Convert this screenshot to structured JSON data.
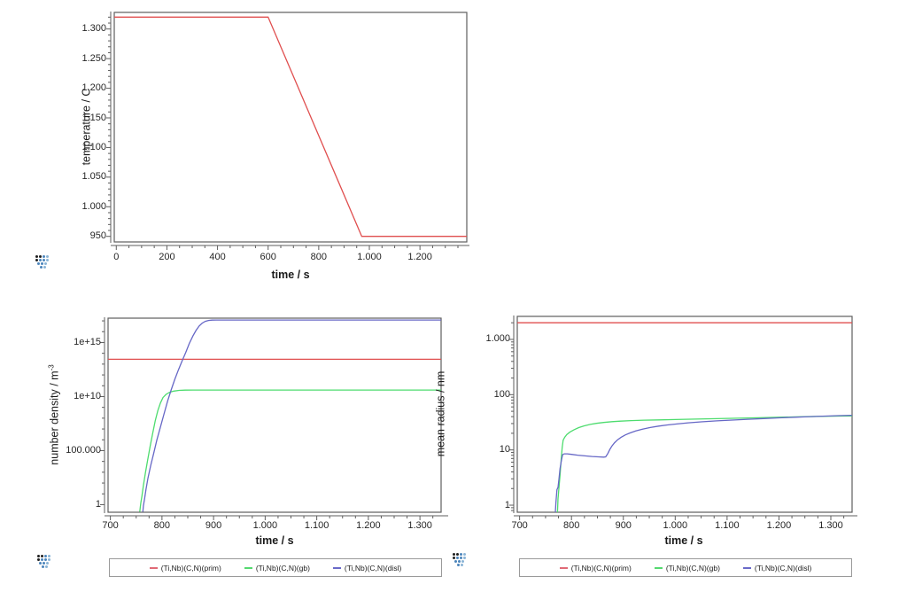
{
  "window": {
    "background": "#ffffff"
  },
  "logo_icon": {
    "name": "matcalc-logo-icon",
    "colors": {
      "dark": "#1f1f1f",
      "blue": "#4b84bb",
      "lightblue": "#8ab4d6"
    }
  },
  "chart_data": [
    {
      "id": "temperature-profile",
      "type": "line",
      "title": "",
      "xlabel": "time / s",
      "ylabel": "temperature / C",
      "ylabel_sup": "",
      "x_axis": {
        "scale": "linear",
        "lim": [
          -8,
          1385
        ],
        "major_step": 200,
        "minor_step": 50,
        "ticks": [
          {
            "v": 0,
            "l": "0"
          },
          {
            "v": 200,
            "l": "200"
          },
          {
            "v": 400,
            "l": "400"
          },
          {
            "v": 600,
            "l": "600"
          },
          {
            "v": 800,
            "l": "800"
          },
          {
            "v": 1000,
            "l": "1.000"
          },
          {
            "v": 1200,
            "l": "1.200"
          }
        ]
      },
      "y_axis": {
        "scale": "linear",
        "lim": [
          940.6,
          1328
        ],
        "major_step": 50,
        "minor_step": 10,
        "ticks": [
          {
            "v": 950,
            "l": "950"
          },
          {
            "v": 1000,
            "l": "1.000"
          },
          {
            "v": 1050,
            "l": "1.050"
          },
          {
            "v": 1100,
            "l": "1.100"
          },
          {
            "v": 1150,
            "l": "1.150"
          },
          {
            "v": 1200,
            "l": "1.200"
          },
          {
            "v": 1250,
            "l": "1.250"
          },
          {
            "v": 1300,
            "l": "1.300"
          }
        ]
      },
      "series": [
        {
          "name": "temperature",
          "color": "#e04f4f",
          "points": [
            [
              -8,
              1320
            ],
            [
              600,
              1320
            ],
            [
              970,
              950
            ],
            [
              1385,
              950
            ]
          ]
        }
      ],
      "legend_entries": []
    },
    {
      "id": "number-density",
      "type": "line",
      "title": "",
      "xlabel": "time / s",
      "ylabel": "number density / m",
      "ylabel_sup": "-3",
      "x_axis": {
        "scale": "linear",
        "lim": [
          695.5,
          1341
        ],
        "major_step": 100,
        "minor_step": 25,
        "ticks": [
          {
            "v": 700,
            "l": "700"
          },
          {
            "v": 800,
            "l": "800"
          },
          {
            "v": 900,
            "l": "900"
          },
          {
            "v": 1000,
            "l": "1.000"
          },
          {
            "v": 1100,
            "l": "1.100"
          },
          {
            "v": 1200,
            "l": "1.200"
          },
          {
            "v": 1300,
            "l": "1.300"
          }
        ]
      },
      "y_axis": {
        "scale": "log",
        "lim": [
          0.1995,
          1.78e+17
        ],
        "minor": "decade",
        "ticks": [
          {
            "v": 1000000000000000.0,
            "l": "1e+15"
          },
          {
            "v": 10000000000.0,
            "l": "1e+10"
          },
          {
            "v": 100000.0,
            "l": "100.000"
          },
          {
            "v": 1,
            "l": "1"
          }
        ]
      },
      "series": [
        {
          "name": "(Ti,Nb)(C,N)(prim)",
          "color": "#e04f4f",
          "points": [
            [
              695.5,
              28000000000000.0
            ],
            [
              1341,
              28000000000000.0
            ]
          ]
        },
        {
          "name": "(Ti,Nb)(C,N)(gb)",
          "color": "#4ddc6e",
          "points": [
            [
              757,
              0.22
            ],
            [
              758,
              0.6
            ],
            [
              759,
              1.5
            ],
            [
              761,
              6
            ],
            [
              764,
              60
            ],
            [
              768,
              900
            ],
            [
              772,
              12000.0
            ],
            [
              777,
              250000.0
            ],
            [
              782,
              4000000.0
            ],
            [
              787,
              60000000.0
            ],
            [
              792,
              500000000.0
            ],
            [
              797,
              2500000000.0
            ],
            [
              802,
              8000000000.0
            ],
            [
              808,
              16000000000.0
            ],
            [
              815,
              25000000000.0
            ],
            [
              823,
              32000000000.0
            ],
            [
              833,
              37000000000.0
            ],
            [
              845,
              39500000000.0
            ],
            [
              860,
              40000000000.0
            ],
            [
              1341,
              40000000000.0
            ]
          ]
        },
        {
          "name": "(Ti,Nb)(C,N)(disl)",
          "color": "#6667c6",
          "points": [
            [
              763,
              0.22
            ],
            [
              764,
              0.8
            ],
            [
              766,
              3
            ],
            [
              769,
              25
            ],
            [
              773,
              300
            ],
            [
              778,
              4000.0
            ],
            [
              784,
              60000.0
            ],
            [
              790,
              900000.0
            ],
            [
              797,
              15000000.0
            ],
            [
              804,
              250000000.0
            ],
            [
              811,
              4000000000.0
            ],
            [
              818,
              45000000000.0
            ],
            [
              825,
              400000000000.0
            ],
            [
              832,
              3000000000000.0
            ],
            [
              839,
              20000000000000.0
            ],
            [
              846,
              120000000000000.0
            ],
            [
              853,
              800000000000000.0
            ],
            [
              860,
              4000000000000000.0
            ],
            [
              866,
              1.3e+16
            ],
            [
              872,
              3.3e+16
            ],
            [
              878,
              6.2e+16
            ],
            [
              884,
              9e+16
            ],
            [
              890,
              1.08e+17
            ],
            [
              897,
              1.17e+17
            ],
            [
              905,
              1.2e+17
            ],
            [
              1341,
              1.2e+17
            ]
          ]
        }
      ],
      "legend_entries": [
        {
          "label": "(Ti,Nb)(C,N)(prim)",
          "color": "#e06a76"
        },
        {
          "label": "(Ti,Nb)(C,N)(gb)",
          "color": "#54d96f"
        },
        {
          "label": "(Ti,Nb)(C,N)(disl)",
          "color": "#6a6ac8"
        }
      ]
    },
    {
      "id": "mean-radius",
      "type": "line",
      "title": "",
      "xlabel": "time / s",
      "ylabel": "mean radius / nm",
      "ylabel_sup": "",
      "x_axis": {
        "scale": "linear",
        "lim": [
          695.5,
          1341
        ],
        "major_step": 100,
        "minor_step": 25,
        "ticks": [
          {
            "v": 700,
            "l": "700"
          },
          {
            "v": 800,
            "l": "800"
          },
          {
            "v": 900,
            "l": "900"
          },
          {
            "v": 1000,
            "l": "1.000"
          },
          {
            "v": 1100,
            "l": "1.100"
          },
          {
            "v": 1200,
            "l": "1.200"
          },
          {
            "v": 1300,
            "l": "1.300"
          }
        ]
      },
      "y_axis": {
        "scale": "log",
        "lim": [
          0.745,
          2610
        ],
        "minor": "logsub",
        "ticks": [
          {
            "v": 1000,
            "l": "1.000"
          },
          {
            "v": 100,
            "l": "100"
          },
          {
            "v": 10,
            "l": "10"
          },
          {
            "v": 1,
            "l": "1"
          }
        ]
      },
      "series": [
        {
          "name": "(Ti,Nb)(C,N)(prim)",
          "color": "#e04f4f",
          "points": [
            [
              695.5,
              2000
            ],
            [
              1341,
              2000
            ]
          ]
        },
        {
          "name": "(Ti,Nb)(C,N)(gb)",
          "color": "#4ddc6e",
          "points": [
            [
              773,
              0.745
            ],
            [
              774,
              1.3
            ],
            [
              776,
              2.1
            ],
            [
              778,
              3.5
            ],
            [
              780,
              6.5
            ],
            [
              782,
              11
            ],
            [
              784,
              15
            ],
            [
              787,
              17
            ],
            [
              791,
              19
            ],
            [
              797,
              21
            ],
            [
              805,
              23.2
            ],
            [
              814,
              25.3
            ],
            [
              824,
              27.2
            ],
            [
              836,
              28.9
            ],
            [
              848,
              30.2
            ],
            [
              862,
              31.4
            ],
            [
              878,
              32.4
            ],
            [
              895,
              33.2
            ],
            [
              915,
              33.9
            ],
            [
              940,
              34.5
            ],
            [
              970,
              35
            ],
            [
              1000,
              35.5
            ],
            [
              1040,
              36.1
            ],
            [
              1080,
              36.8
            ],
            [
              1120,
              37.5
            ],
            [
              1160,
              38.2
            ],
            [
              1200,
              39
            ],
            [
              1240,
              39.8
            ],
            [
              1280,
              40.5
            ],
            [
              1315,
              41
            ],
            [
              1341,
              41.3
            ]
          ]
        },
        {
          "name": "(Ti,Nb)(C,N)(disl)",
          "color": "#6667c6",
          "points": [
            [
              769,
              0.745
            ],
            [
              770,
              1.1
            ],
            [
              772,
              1.9
            ],
            [
              774,
              2.1
            ],
            [
              776,
              3
            ],
            [
              778,
              4.6
            ],
            [
              781,
              6.8
            ],
            [
              783,
              8.2
            ],
            [
              786,
              8.5
            ],
            [
              792,
              8.5
            ],
            [
              800,
              8.3
            ],
            [
              812,
              8.05
            ],
            [
              826,
              7.8
            ],
            [
              840,
              7.6
            ],
            [
              852,
              7.5
            ],
            [
              862,
              7.4
            ],
            [
              866,
              7.5
            ],
            [
              870,
              8.6
            ],
            [
              874,
              10.2
            ],
            [
              878,
              11.8
            ],
            [
              883,
              13.5
            ],
            [
              889,
              15.3
            ],
            [
              896,
              17
            ],
            [
              904,
              18.7
            ],
            [
              913,
              20.3
            ],
            [
              924,
              22
            ],
            [
              937,
              23.7
            ],
            [
              952,
              25.4
            ],
            [
              968,
              27
            ],
            [
              985,
              28.3
            ],
            [
              1003,
              29.5
            ],
            [
              1025,
              30.9
            ],
            [
              1050,
              32.2
            ],
            [
              1080,
              33.5
            ],
            [
              1110,
              34.7
            ],
            [
              1140,
              35.8
            ],
            [
              1170,
              36.9
            ],
            [
              1200,
              38
            ],
            [
              1230,
              39
            ],
            [
              1260,
              40
            ],
            [
              1290,
              40.9
            ],
            [
              1315,
              41.7
            ],
            [
              1341,
              42.4
            ]
          ]
        }
      ],
      "legend_entries": [
        {
          "label": "(Ti,Nb)(C,N)(prim)",
          "color": "#e06a76"
        },
        {
          "label": "(Ti,Nb)(C,N)(gb)",
          "color": "#54d96f"
        },
        {
          "label": "(Ti,Nb)(C,N)(disl)",
          "color": "#6a6ac8"
        }
      ]
    }
  ]
}
